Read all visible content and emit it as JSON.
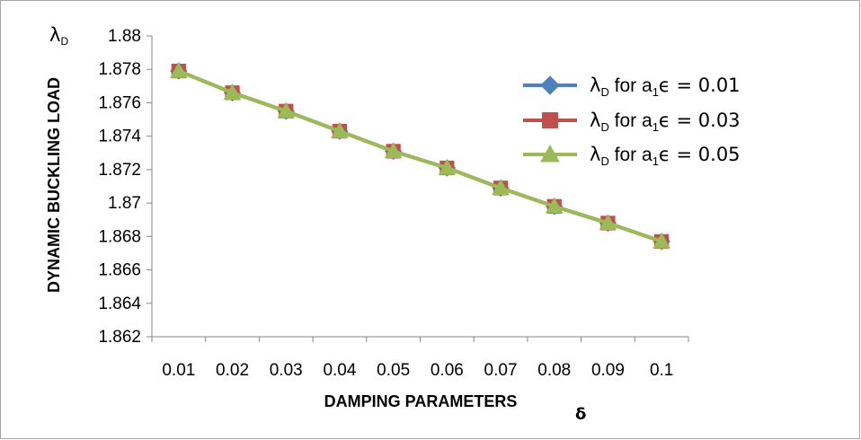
{
  "chart_data": {
    "type": "line",
    "x_tick_labels": [
      "0.01",
      "0.02",
      "0.03",
      "0.04",
      "0.05",
      "0.06",
      "0.07",
      "0.08",
      "0.09",
      "0.1"
    ],
    "y_tick_labels": [
      "1.862",
      "1.864",
      "1.866",
      "1.868",
      "1.87",
      "1.872",
      "1.874",
      "1.876",
      "1.878",
      "1.88"
    ],
    "ylim": [
      1.862,
      1.88
    ],
    "ylabel": "DYNAMIC BUCKLING LOAD",
    "ylabel_symbol": "λ",
    "ylabel_symbol_sub": "D",
    "xlabel": "DAMPING PARAMETERS",
    "xlabel_symbol": "δ",
    "grid": false,
    "legend_position": "right",
    "series": [
      {
        "name": "λD for a1ϵ = 0.01",
        "legend": {
          "prefix": "λ",
          "prefix_sub": "D",
          "mid": " for a",
          "mid_sub": "1",
          "suffix": "ϵ = 0.01"
        },
        "marker": "diamond",
        "color": "#4f81bd",
        "values": [
          1.8779,
          1.8766,
          1.8755,
          1.8743,
          1.8731,
          1.8721,
          1.8709,
          1.8698,
          1.8688,
          1.8677
        ]
      },
      {
        "name": "λD for a1ϵ = 0.03",
        "legend": {
          "prefix": "λ",
          "prefix_sub": "D",
          "mid": " for a",
          "mid_sub": "1",
          "suffix": "ϵ = 0.03"
        },
        "marker": "square",
        "color": "#c0504d",
        "values": [
          1.8779,
          1.8766,
          1.8755,
          1.8743,
          1.8731,
          1.8721,
          1.8709,
          1.8698,
          1.8688,
          1.8677
        ]
      },
      {
        "name": "λD for a1ϵ = 0.05",
        "legend": {
          "prefix": "λ",
          "prefix_sub": "D",
          "mid": " for a",
          "mid_sub": "1",
          "suffix": "ϵ = 0.05"
        },
        "marker": "triangle",
        "color": "#9bbb59",
        "values": [
          1.8779,
          1.8766,
          1.8755,
          1.8743,
          1.8731,
          1.8721,
          1.8709,
          1.8698,
          1.8688,
          1.8677
        ]
      }
    ]
  }
}
